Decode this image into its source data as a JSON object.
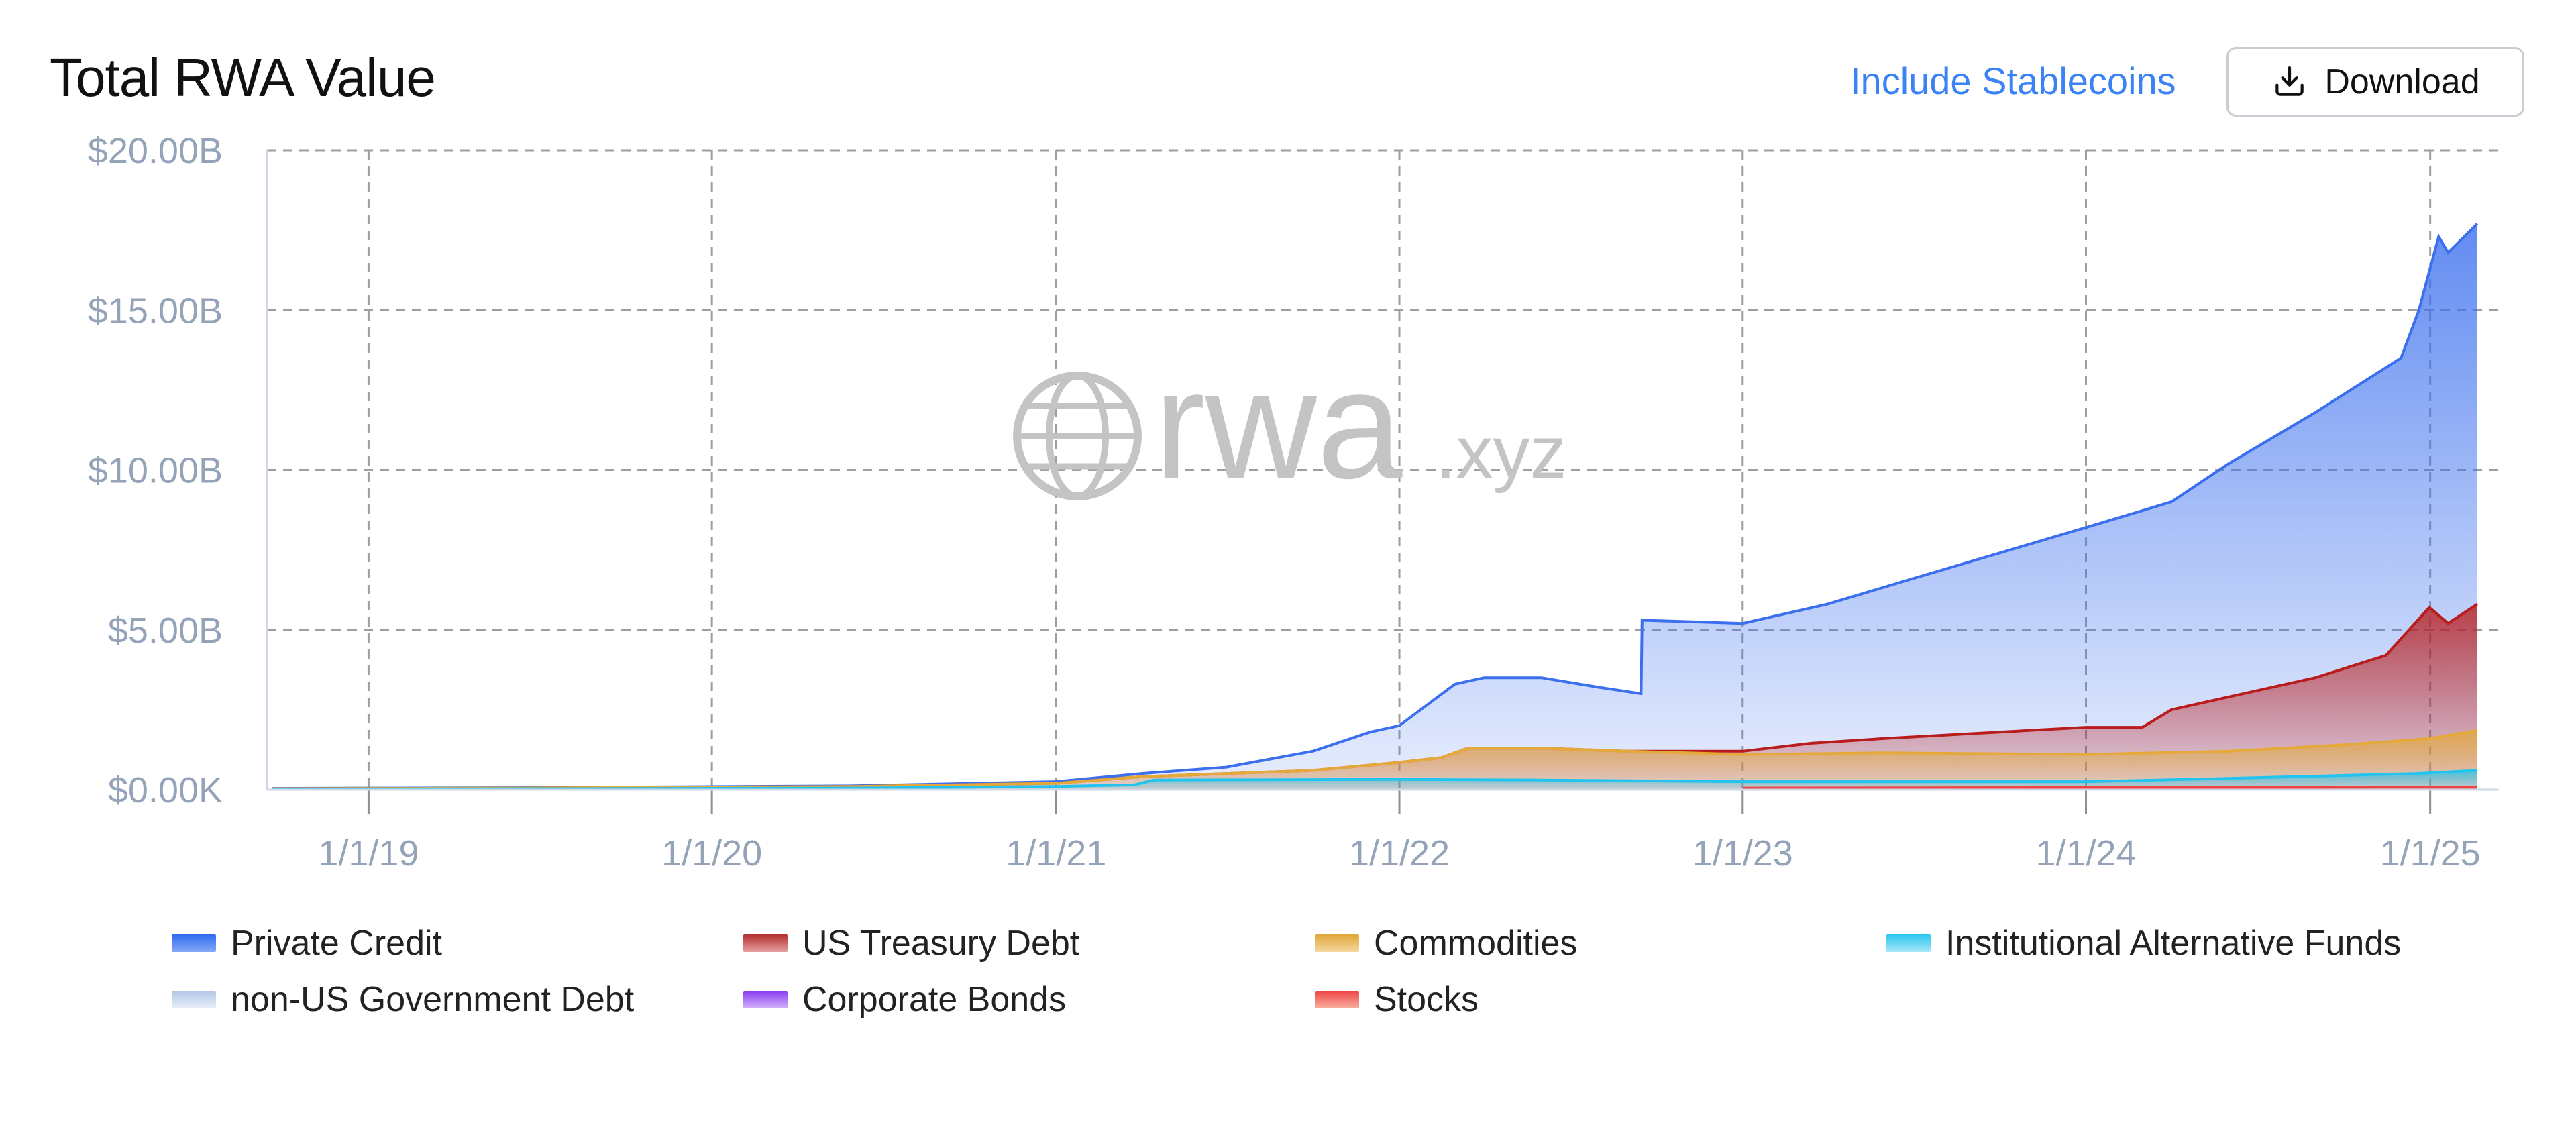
{
  "header": {
    "title": "Total RWA Value",
    "toggle_label": "Include Stablecoins",
    "download_label": "Download",
    "accent_color": "#3b82f6"
  },
  "watermark": {
    "brand": "rwa",
    "suffix": ".xyz"
  },
  "chart_data": {
    "type": "area",
    "stacked": true,
    "title": "Total RWA Value",
    "y_unit": "USD",
    "ylim": [
      0,
      20000000000
    ],
    "y_ticks": [
      {
        "value": 0,
        "label": "$0.00K"
      },
      {
        "value": 5000000000,
        "label": "$5.00B"
      },
      {
        "value": 10000000000,
        "label": "$10.00B"
      },
      {
        "value": 15000000000,
        "label": "$15.00B"
      },
      {
        "value": 20000000000,
        "label": "$20.00B"
      }
    ],
    "xlim": [
      "2018-09-15",
      "2025-03-15"
    ],
    "x_ticks": [
      {
        "value": "2019-01-01",
        "label": "1/1/19"
      },
      {
        "value": "2020-01-01",
        "label": "1/1/20"
      },
      {
        "value": "2021-01-01",
        "label": "1/1/21"
      },
      {
        "value": "2022-01-01",
        "label": "1/1/22"
      },
      {
        "value": "2023-01-01",
        "label": "1/1/23"
      },
      {
        "value": "2024-01-01",
        "label": "1/1/24"
      },
      {
        "value": "2025-01-01",
        "label": "1/1/25"
      }
    ],
    "grid": true,
    "legend_position": "bottom",
    "series": [
      {
        "name": "Institutional Alternative Funds",
        "color": "#22c3ee",
        "cumulative_totals": [
          [
            "2018-09-20",
            0.02
          ],
          [
            "2019-06-01",
            0.03
          ],
          [
            "2020-06-01",
            0.05
          ],
          [
            "2021-01-01",
            0.1
          ],
          [
            "2021-03-25",
            0.15
          ],
          [
            "2021-04-15",
            0.3
          ],
          [
            "2021-12-31",
            0.32
          ],
          [
            "2022-06-01",
            0.3
          ],
          [
            "2023-01-01",
            0.25
          ],
          [
            "2023-06-01",
            0.25
          ],
          [
            "2024-01-01",
            0.25
          ],
          [
            "2024-06-01",
            0.35
          ],
          [
            "2024-12-15",
            0.5
          ],
          [
            "2025-02-20",
            0.6
          ]
        ]
      },
      {
        "name": "Commodities",
        "color": "#e5a93a",
        "cumulative_totals": [
          [
            "2018-09-20",
            0.03
          ],
          [
            "2019-06-01",
            0.05
          ],
          [
            "2020-06-01",
            0.1
          ],
          [
            "2021-01-01",
            0.2
          ],
          [
            "2021-04-01",
            0.4
          ],
          [
            "2021-10-01",
            0.6
          ],
          [
            "2022-01-01",
            0.85
          ],
          [
            "2022-02-15",
            1.0
          ],
          [
            "2022-03-15",
            1.3
          ],
          [
            "2022-06-01",
            1.3
          ],
          [
            "2022-09-01",
            1.2
          ],
          [
            "2023-01-01",
            1.1
          ],
          [
            "2023-06-01",
            1.15
          ],
          [
            "2024-01-01",
            1.1
          ],
          [
            "2024-06-01",
            1.2
          ],
          [
            "2024-10-01",
            1.4
          ],
          [
            "2025-01-01",
            1.6
          ],
          [
            "2025-02-20",
            1.85
          ]
        ]
      },
      {
        "name": "US Treasury Debt",
        "color": "#b91c1c",
        "cumulative_totals": [
          [
            "2018-09-20",
            0.03
          ],
          [
            "2019-06-01",
            0.05
          ],
          [
            "2020-06-01",
            0.1
          ],
          [
            "2021-01-01",
            0.2
          ],
          [
            "2021-04-01",
            0.4
          ],
          [
            "2021-10-01",
            0.6
          ],
          [
            "2022-01-01",
            0.85
          ],
          [
            "2022-02-15",
            1.0
          ],
          [
            "2022-03-15",
            1.3
          ],
          [
            "2022-06-01",
            1.3
          ],
          [
            "2022-09-01",
            1.2
          ],
          [
            "2023-01-01",
            1.2
          ],
          [
            "2023-03-15",
            1.45
          ],
          [
            "2023-06-01",
            1.6
          ],
          [
            "2023-10-01",
            1.8
          ],
          [
            "2024-01-01",
            1.95
          ],
          [
            "2024-03-01",
            1.95
          ],
          [
            "2024-04-01",
            2.5
          ],
          [
            "2024-06-01",
            2.9
          ],
          [
            "2024-09-01",
            3.5
          ],
          [
            "2024-11-15",
            4.2
          ],
          [
            "2024-12-31",
            5.7
          ],
          [
            "2025-01-20",
            5.2
          ],
          [
            "2025-02-20",
            5.8
          ]
        ]
      },
      {
        "name": "Private Credit",
        "color": "#3b6fee",
        "cumulative_totals": [
          [
            "2018-09-20",
            0.04
          ],
          [
            "2019-06-01",
            0.06
          ],
          [
            "2020-06-01",
            0.12
          ],
          [
            "2021-01-01",
            0.25
          ],
          [
            "2021-04-01",
            0.5
          ],
          [
            "2021-07-01",
            0.7
          ],
          [
            "2021-10-01",
            1.2
          ],
          [
            "2021-12-01",
            1.8
          ],
          [
            "2022-01-01",
            2.0
          ],
          [
            "2022-03-01",
            3.3
          ],
          [
            "2022-04-01",
            3.5
          ],
          [
            "2022-06-01",
            3.5
          ],
          [
            "2022-08-01",
            3.2
          ],
          [
            "2022-09-15",
            3.0
          ],
          [
            "2022-09-16",
            5.3
          ],
          [
            "2023-01-01",
            5.2
          ],
          [
            "2023-04-01",
            5.8
          ],
          [
            "2023-07-01",
            6.6
          ],
          [
            "2023-10-01",
            7.4
          ],
          [
            "2024-01-01",
            8.2
          ],
          [
            "2024-04-01",
            9.0
          ],
          [
            "2024-06-01",
            10.2
          ],
          [
            "2024-09-01",
            11.8
          ],
          [
            "2024-12-01",
            13.5
          ],
          [
            "2024-12-20",
            15.0
          ],
          [
            "2025-01-10",
            17.3
          ],
          [
            "2025-01-20",
            16.8
          ],
          [
            "2025-02-20",
            17.7
          ]
        ]
      },
      {
        "name": "Stocks",
        "color": "#ef4444",
        "cumulative_totals": [
          [
            "2023-01-01",
            0.05
          ],
          [
            "2025-02-20",
            0.08
          ]
        ]
      }
    ]
  },
  "legend": [
    {
      "label": "Private Credit",
      "from": "#2f6bf0",
      "to": "#86a8f8"
    },
    {
      "label": "US Treasury Debt",
      "from": "#b32e2e",
      "to": "#e6a0a0"
    },
    {
      "label": "Commodities",
      "from": "#e0a638",
      "to": "#f4d9a0"
    },
    {
      "label": "Institutional Alternative Funds",
      "from": "#2bc6ee",
      "to": "#a7e7f7"
    },
    {
      "label": "non-US Government Debt",
      "from": "#b3c7e6",
      "to": "#e7eef8"
    },
    {
      "label": "Corporate Bonds",
      "from": "#8b3cf0",
      "to": "#d2b3fa"
    },
    {
      "label": "Stocks",
      "from": "#ef4444",
      "to": "#f8b0a0"
    }
  ],
  "style": {
    "axis_text_color": "#94a3b8",
    "grid_color": "#9e9e9e",
    "watermark_color": "#c4c4c4"
  }
}
